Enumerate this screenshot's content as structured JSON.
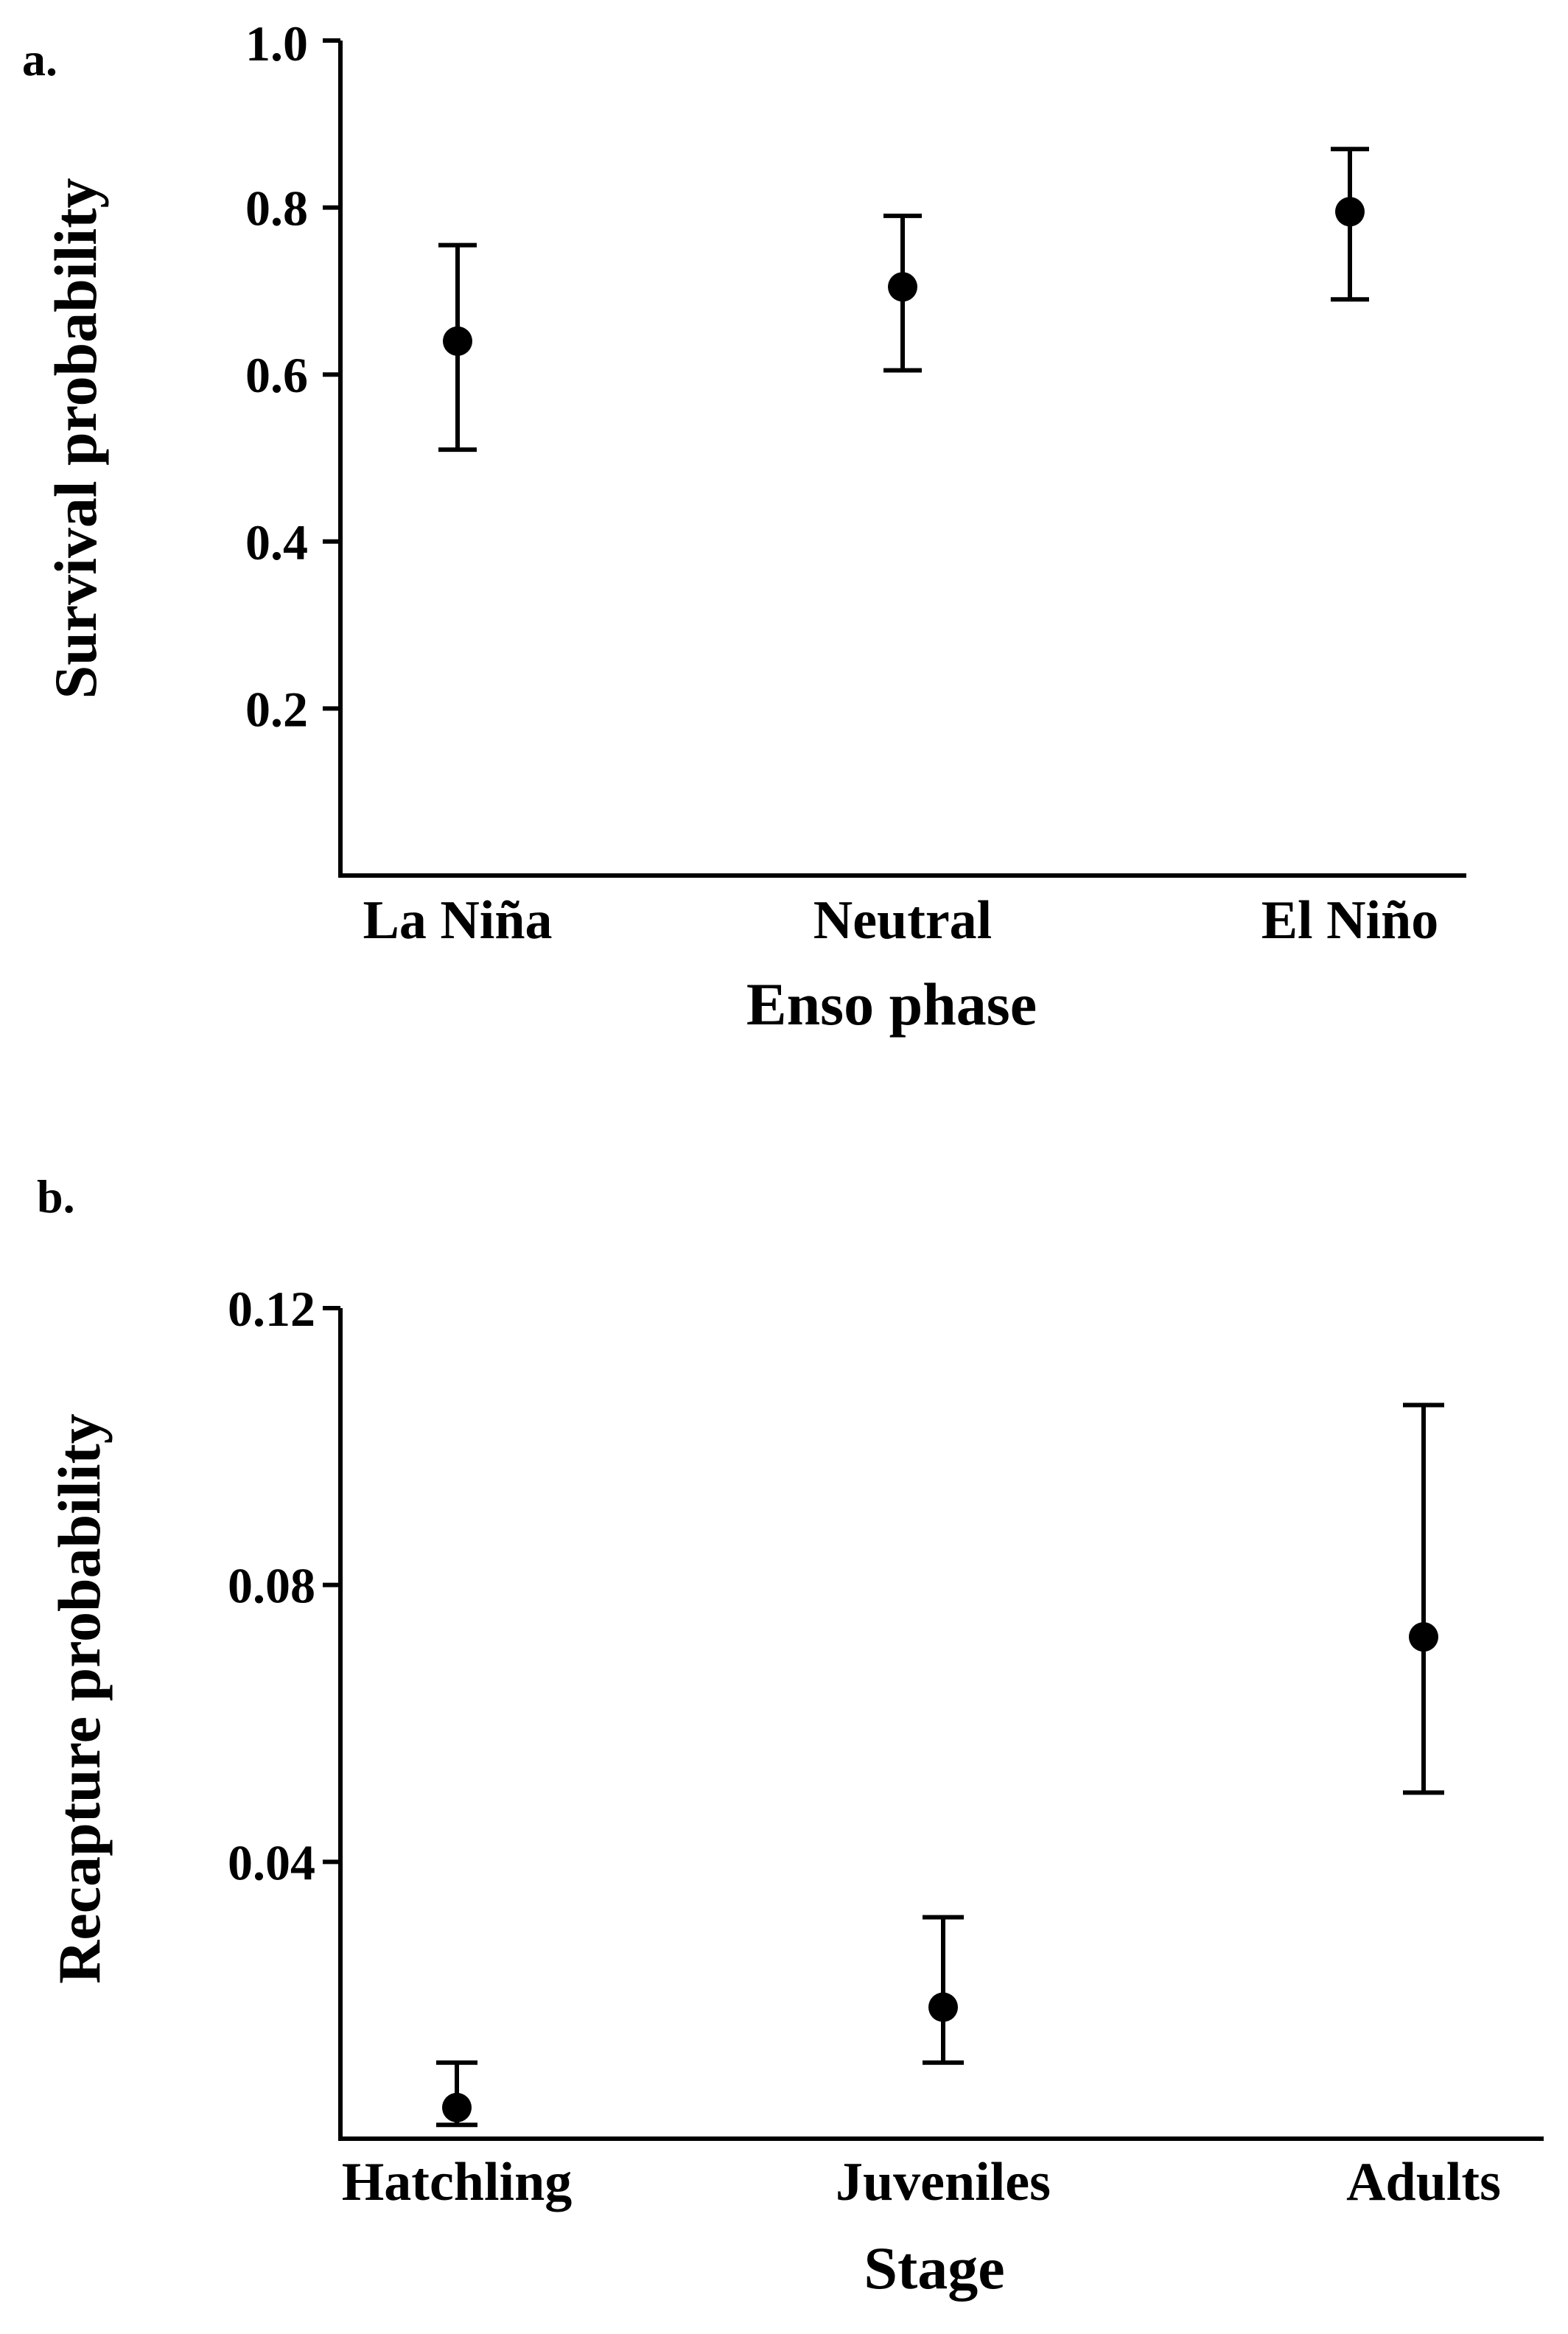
{
  "chart_data": [
    {
      "type": "scatter",
      "panel_label": "a.",
      "categories": [
        "La Niña",
        "Neutral",
        "El Niño"
      ],
      "values": [
        0.64,
        0.705,
        0.795
      ],
      "error_lower": [
        0.51,
        0.605,
        0.69
      ],
      "error_upper": [
        0.755,
        0.79,
        0.87
      ],
      "ylim": [
        0.0,
        1.0
      ],
      "yticks": [
        0.2,
        0.4,
        0.6,
        0.8
      ],
      "ytick_labels": [
        "0.2",
        "0.4",
        "0.6",
        "0.8"
      ],
      "ytop_label": "1.0",
      "xlabel": "Enso phase",
      "ylabel": "Survival probability",
      "grid": false,
      "legend": "none",
      "marker_color": "#000000"
    },
    {
      "type": "scatter",
      "panel_label": "b.",
      "categories": [
        "Hatchling",
        "Juveniles",
        "Adults"
      ],
      "values": [
        0.0045,
        0.019,
        0.0725
      ],
      "error_lower": [
        0.002,
        0.011,
        0.05
      ],
      "error_upper": [
        0.011,
        0.032,
        0.106
      ],
      "ylim": [
        0.0,
        0.12
      ],
      "yticks": [
        0.04,
        0.08,
        0.12
      ],
      "ytick_labels": [
        "0.04",
        "0.08",
        "0.12"
      ],
      "xlabel": "Stage",
      "ylabel": "Recapture probability",
      "grid": false,
      "legend": "none",
      "marker_color": "#000000"
    }
  ]
}
